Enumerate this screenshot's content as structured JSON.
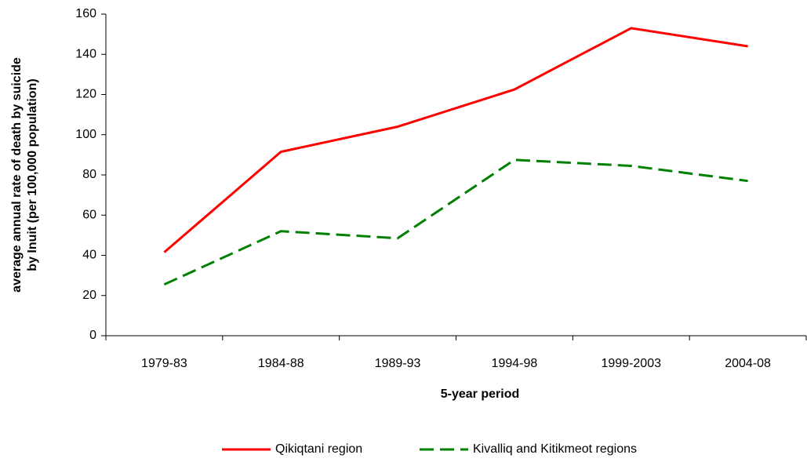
{
  "chart_data": {
    "type": "line",
    "y_label": [
      "average annual rate of death by suicide",
      "by Inuit  (per 100,000 population)"
    ],
    "x_label": "5-year period",
    "categories": [
      "1979-83",
      "1984-88",
      "1989-93",
      "1994-98",
      "1999-2003",
      "2004-08"
    ],
    "series": [
      {
        "name": "Qikiqtani region",
        "color": "#ff0000",
        "dash": "solid",
        "values": [
          41.5,
          91.5,
          104,
          122.5,
          153,
          144
        ]
      },
      {
        "name": "Kivalliq and Kitikmeot regions",
        "color": "#008000",
        "dash": "dashed",
        "values": [
          25.5,
          52,
          48.5,
          87.5,
          84.5,
          77
        ]
      }
    ],
    "ylim": [
      0,
      160
    ],
    "yticks": [
      0,
      20,
      40,
      60,
      80,
      100,
      120,
      140,
      160
    ],
    "grid": false,
    "legend": "bottom"
  }
}
